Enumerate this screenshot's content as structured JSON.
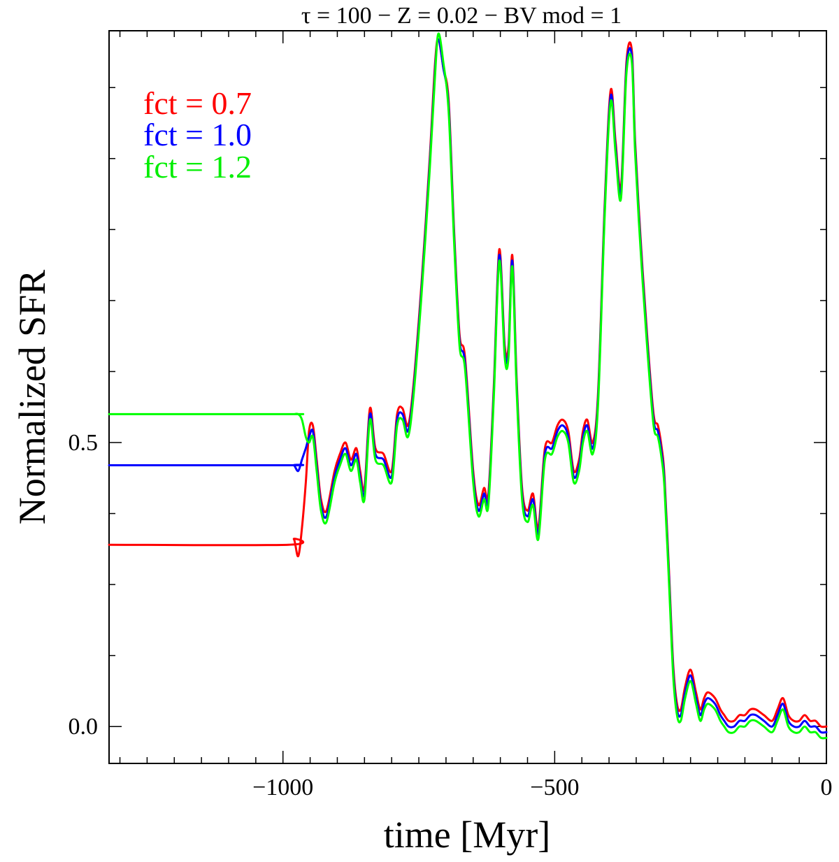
{
  "chart_data": {
    "type": "line",
    "title": "τ = 100 − Z = 0.02 − BV mod = 1",
    "xlabel": "time [Myr]",
    "ylabel": "Normalized SFR",
    "xlim": [
      -1320,
      0
    ],
    "ylim": [
      -0.065,
      1.225
    ],
    "xticks_labeled": [
      {
        "value": -1000,
        "label": "−1000"
      },
      {
        "value": -500,
        "label": "−500"
      },
      {
        "value": 0,
        "label": "0"
      }
    ],
    "yticks_labeled": [
      {
        "value": 0.0,
        "label": "0.0"
      },
      {
        "value": 0.5,
        "label": "0.5"
      }
    ],
    "x_minor_step": 50,
    "y_minor_step": 0.125,
    "grid": false,
    "legend_position": "top-left",
    "series": [
      {
        "name": "fct = 0.7",
        "label": "fct = 0.7",
        "color": "#ff0000",
        "x": [
          -1320,
          -990,
          -980,
          -972,
          -965,
          -958,
          -952,
          -945,
          -938,
          -930,
          -920,
          -905,
          -895,
          -885,
          -875,
          -865,
          -858,
          -850,
          -840,
          -830,
          -815,
          -800,
          -790,
          -780,
          -770,
          -760,
          -745,
          -730,
          -720,
          -714,
          -705,
          -695,
          -685,
          -675,
          -665,
          -650,
          -640,
          -630,
          -622,
          -612,
          -602,
          -592,
          -585,
          -578,
          -570,
          -560,
          -550,
          -540,
          -530,
          -518,
          -505,
          -495,
          -485,
          -475,
          -465,
          -455,
          -448,
          -440,
          -430,
          -420,
          -408,
          -397,
          -388,
          -378,
          -368,
          -358,
          -352,
          -342,
          -330,
          -318,
          -310,
          -303,
          -298,
          -290,
          -282,
          -275,
          -268,
          -260,
          -250,
          -240,
          -232,
          -225,
          -218,
          -205,
          -195,
          -188,
          -180,
          -170,
          -160,
          -150,
          -140,
          -130,
          -115,
          -100,
          -90,
          -80,
          -70,
          -60,
          -50,
          -40,
          -30,
          -20,
          -10,
          0
        ],
        "y": [
          0.32,
          0.32,
          0.33,
          0.3,
          0.35,
          0.43,
          0.52,
          0.53,
          0.47,
          0.4,
          0.38,
          0.45,
          0.48,
          0.5,
          0.47,
          0.49,
          0.45,
          0.42,
          0.56,
          0.49,
          0.48,
          0.45,
          0.55,
          0.56,
          0.53,
          0.6,
          0.78,
          1.0,
          1.17,
          1.21,
          1.16,
          1.1,
          0.87,
          0.69,
          0.65,
          0.45,
          0.39,
          0.42,
          0.41,
          0.6,
          0.84,
          0.67,
          0.67,
          0.83,
          0.61,
          0.42,
          0.38,
          0.41,
          0.35,
          0.49,
          0.5,
          0.53,
          0.54,
          0.52,
          0.45,
          0.47,
          0.52,
          0.54,
          0.5,
          0.59,
          0.92,
          1.12,
          1.03,
          0.95,
          1.17,
          1.19,
          1.03,
          0.86,
          0.69,
          0.55,
          0.53,
          0.49,
          0.44,
          0.28,
          0.11,
          0.04,
          0.03,
          0.07,
          0.1,
          0.06,
          0.03,
          0.05,
          0.06,
          0.05,
          0.03,
          0.02,
          0.01,
          0.01,
          0.02,
          0.02,
          0.03,
          0.03,
          0.02,
          0.01,
          0.03,
          0.05,
          0.02,
          0.01,
          0.01,
          0.02,
          0.01,
          0.01,
          0.0,
          0.0
        ]
      },
      {
        "name": "fct = 1.0",
        "label": "fct = 1.0",
        "color": "#0000ff",
        "x": [
          -1320,
          -990,
          -980,
          -972,
          -965,
          -958,
          -952,
          -945,
          -938,
          -930,
          -920,
          -905,
          -895,
          -885,
          -875,
          -865,
          -858,
          -850,
          -840,
          -830,
          -815,
          -800,
          -790,
          -780,
          -770,
          -760,
          -745,
          -730,
          -720,
          -714,
          -705,
          -695,
          -685,
          -675,
          -665,
          -650,
          -640,
          -630,
          -622,
          -612,
          -602,
          -592,
          -585,
          -578,
          -570,
          -560,
          -550,
          -540,
          -530,
          -518,
          -505,
          -495,
          -485,
          -475,
          -465,
          -455,
          -448,
          -440,
          -430,
          -420,
          -408,
          -397,
          -388,
          -378,
          -368,
          -358,
          -352,
          -342,
          -330,
          -318,
          -310,
          -303,
          -298,
          -290,
          -282,
          -275,
          -268,
          -260,
          -250,
          -240,
          -232,
          -225,
          -218,
          -205,
          -195,
          -188,
          -180,
          -170,
          -160,
          -150,
          -140,
          -130,
          -115,
          -100,
          -90,
          -80,
          -70,
          -60,
          -50,
          -40,
          -30,
          -20,
          -10,
          0
        ],
        "y": [
          0.46,
          0.46,
          0.46,
          0.45,
          0.47,
          0.49,
          0.51,
          0.52,
          0.46,
          0.39,
          0.37,
          0.44,
          0.47,
          0.49,
          0.46,
          0.48,
          0.44,
          0.41,
          0.55,
          0.48,
          0.47,
          0.44,
          0.54,
          0.55,
          0.52,
          0.59,
          0.77,
          0.99,
          1.16,
          1.21,
          1.16,
          1.09,
          0.86,
          0.68,
          0.64,
          0.44,
          0.38,
          0.41,
          0.4,
          0.59,
          0.83,
          0.66,
          0.66,
          0.82,
          0.6,
          0.41,
          0.37,
          0.4,
          0.34,
          0.48,
          0.49,
          0.52,
          0.53,
          0.51,
          0.44,
          0.46,
          0.51,
          0.53,
          0.49,
          0.58,
          0.91,
          1.11,
          1.02,
          0.94,
          1.16,
          1.18,
          1.02,
          0.85,
          0.68,
          0.54,
          0.52,
          0.48,
          0.43,
          0.27,
          0.1,
          0.03,
          0.02,
          0.06,
          0.09,
          0.05,
          0.02,
          0.04,
          0.05,
          0.04,
          0.02,
          0.01,
          0.0,
          0.0,
          0.01,
          0.01,
          0.02,
          0.02,
          0.01,
          0.0,
          0.02,
          0.04,
          0.01,
          0.0,
          0.0,
          0.01,
          0.0,
          0.0,
          -0.01,
          -0.01
        ]
      },
      {
        "name": "fct = 1.2",
        "label": "fct = 1.2",
        "color": "#00ff00",
        "x": [
          -1320,
          -990,
          -980,
          -972,
          -965,
          -958,
          -952,
          -945,
          -938,
          -930,
          -920,
          -905,
          -895,
          -885,
          -875,
          -865,
          -858,
          -850,
          -840,
          -830,
          -815,
          -800,
          -790,
          -780,
          -770,
          -760,
          -745,
          -730,
          -720,
          -714,
          -705,
          -695,
          -685,
          -675,
          -665,
          -650,
          -640,
          -630,
          -622,
          -612,
          -602,
          -592,
          -585,
          -578,
          -570,
          -560,
          -550,
          -540,
          -530,
          -518,
          -505,
          -495,
          -485,
          -475,
          -465,
          -455,
          -448,
          -440,
          -430,
          -420,
          -408,
          -397,
          -388,
          -378,
          -368,
          -358,
          -352,
          -342,
          -330,
          -318,
          -310,
          -303,
          -298,
          -290,
          -282,
          -275,
          -268,
          -260,
          -250,
          -240,
          -232,
          -225,
          -218,
          -205,
          -195,
          -188,
          -180,
          -170,
          -160,
          -150,
          -140,
          -130,
          -115,
          -100,
          -90,
          -80,
          -70,
          -60,
          -50,
          -40,
          -30,
          -20,
          -10,
          0
        ],
        "y": [
          0.55,
          0.55,
          0.55,
          0.55,
          0.54,
          0.51,
          0.5,
          0.51,
          0.45,
          0.38,
          0.36,
          0.43,
          0.46,
          0.48,
          0.45,
          0.47,
          0.43,
          0.4,
          0.54,
          0.47,
          0.46,
          0.43,
          0.53,
          0.54,
          0.51,
          0.58,
          0.76,
          0.98,
          1.15,
          1.22,
          1.17,
          1.08,
          0.85,
          0.67,
          0.63,
          0.43,
          0.37,
          0.4,
          0.39,
          0.58,
          0.82,
          0.65,
          0.65,
          0.81,
          0.59,
          0.4,
          0.36,
          0.39,
          0.33,
          0.47,
          0.48,
          0.51,
          0.52,
          0.5,
          0.43,
          0.45,
          0.5,
          0.52,
          0.48,
          0.57,
          0.9,
          1.1,
          1.01,
          0.93,
          1.15,
          1.17,
          1.01,
          0.84,
          0.67,
          0.53,
          0.51,
          0.47,
          0.42,
          0.26,
          0.09,
          0.02,
          0.01,
          0.05,
          0.08,
          0.04,
          0.01,
          0.03,
          0.04,
          0.03,
          0.01,
          0.0,
          -0.01,
          -0.01,
          0.0,
          0.0,
          0.01,
          0.01,
          0.0,
          -0.01,
          0.01,
          0.03,
          0.0,
          -0.01,
          -0.01,
          0.0,
          -0.01,
          -0.01,
          -0.02,
          -0.02
        ]
      }
    ]
  }
}
